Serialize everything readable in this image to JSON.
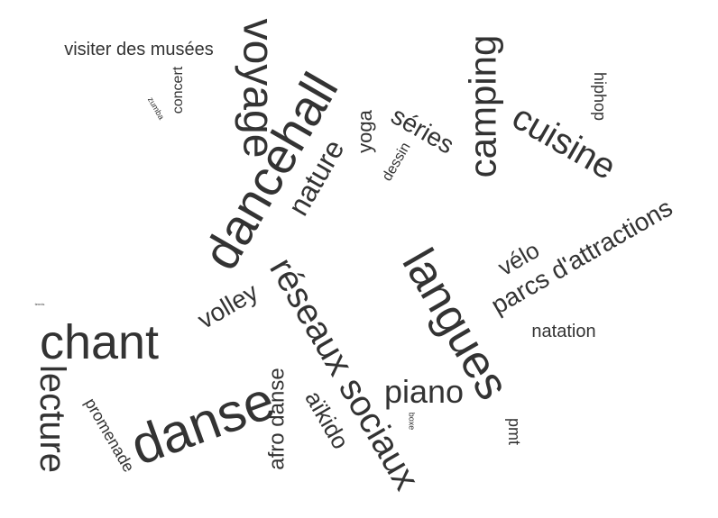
{
  "text_color": "#333333",
  "background": "#ffffff",
  "words": [
    {
      "text": "dancehall",
      "weight": 56
    },
    {
      "text": "voyage",
      "weight": 48
    },
    {
      "text": "camping",
      "weight": 42
    },
    {
      "text": "cuisine",
      "weight": 40
    },
    {
      "text": "langues",
      "weight": 52
    },
    {
      "text": "réseaux sociaux",
      "weight": 40
    },
    {
      "text": "chant",
      "weight": 54
    },
    {
      "text": "danse",
      "weight": 60
    },
    {
      "text": "lecture",
      "weight": 40
    },
    {
      "text": "piano",
      "weight": 36
    },
    {
      "text": "nature",
      "weight": 32
    },
    {
      "text": "parcs d'attractions",
      "weight": 28
    },
    {
      "text": "volley",
      "weight": 28
    },
    {
      "text": "séries",
      "weight": 28
    },
    {
      "text": "aïkido",
      "weight": 26
    },
    {
      "text": "afro danse",
      "weight": 24
    },
    {
      "text": "vélo",
      "weight": 26
    },
    {
      "text": "yoga",
      "weight": 22
    },
    {
      "text": "visiter des musées",
      "weight": 20
    },
    {
      "text": "natation",
      "weight": 20
    },
    {
      "text": "promenade",
      "weight": 18
    },
    {
      "text": "hiphop",
      "weight": 18
    },
    {
      "text": "pmt",
      "weight": 18
    },
    {
      "text": "concert",
      "weight": 16
    },
    {
      "text": "dessin",
      "weight": 16
    },
    {
      "text": "zumba",
      "weight": 9
    },
    {
      "text": "boxe",
      "weight": 9
    },
    {
      "text": "tennis",
      "weight": 4
    }
  ]
}
